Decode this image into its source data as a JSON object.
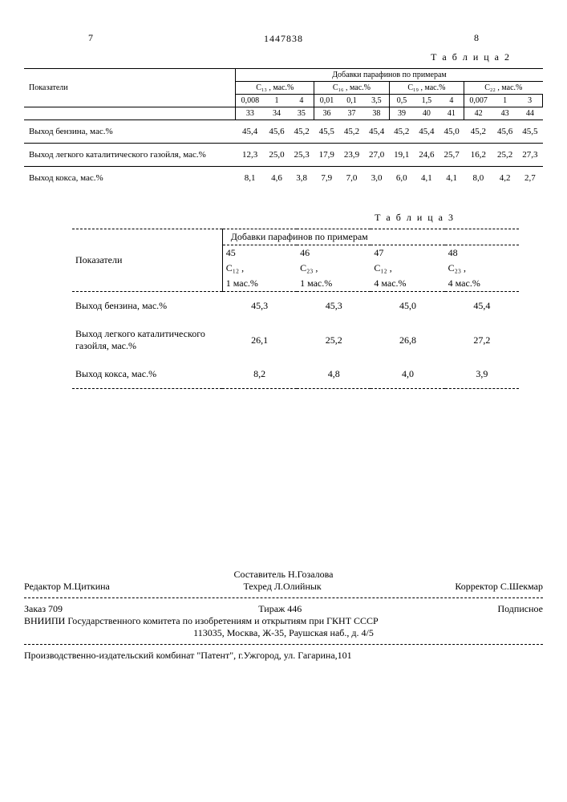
{
  "pageLeft": "7",
  "patentNumber": "1447838",
  "pageRight": "8",
  "table2": {
    "caption": "Т а б л и ц а 2",
    "cornerHeader": "Показатели",
    "spanHeader": "Добавки парафинов по примерам",
    "groups": [
      {
        "label": "C₁₃ , мас.%",
        "conc": [
          "0,008",
          "1",
          "4"
        ],
        "ex": [
          "33",
          "34",
          "35"
        ]
      },
      {
        "label": "C₁₆ , мас.%",
        "conc": [
          "0,01",
          "0,1",
          "3,5"
        ],
        "ex": [
          "36",
          "37",
          "38"
        ]
      },
      {
        "label": "C₁₉ , мас.%",
        "conc": [
          "0,5",
          "1,5",
          "4"
        ],
        "ex": [
          "39",
          "40",
          "41"
        ]
      },
      {
        "label": "C₂₂ , мас.%",
        "conc": [
          "0,007",
          "1",
          "3"
        ],
        "ex": [
          "42",
          "43",
          "44"
        ]
      }
    ],
    "rows": [
      {
        "label": "Выход бензина, мас.%",
        "vals": [
          "45,4",
          "45,6",
          "45,2",
          "45,5",
          "45,2",
          "45,4",
          "45,2",
          "45,4",
          "45,0",
          "45,2",
          "45,6",
          "45,5"
        ]
      },
      {
        "label": "Выход легкого каталитического газойля, мас.%",
        "vals": [
          "12,3",
          "25,0",
          "25,3",
          "17,9",
          "23,9",
          "27,0",
          "19,1",
          "24,6",
          "25,7",
          "16,2",
          "25,2",
          "27,3"
        ]
      },
      {
        "label": "Выход кокса, мас.%",
        "vals": [
          "8,1",
          "4,6",
          "3,8",
          "7,9",
          "7,0",
          "3,0",
          "6,0",
          "4,1",
          "4,1",
          "8,0",
          "4,2",
          "2,7"
        ]
      }
    ]
  },
  "table3": {
    "caption": "Т а б л и ц а 3",
    "cornerHeader": "Показатели",
    "spanHeader": "Добавки парафинов по примерам",
    "cols": [
      {
        "ex": "45",
        "comp": "C₁₂ ,",
        "amt": "1 мас.%"
      },
      {
        "ex": "46",
        "comp": "C₂₃ ,",
        "amt": "1 мас.%"
      },
      {
        "ex": "47",
        "comp": "C₁₂ ,",
        "amt": "4 мас.%"
      },
      {
        "ex": "48",
        "comp": "C₂₃ ,",
        "amt": "4 мас.%"
      }
    ],
    "rows": [
      {
        "label": "Выход бензина, мас.%",
        "vals": [
          "45,3",
          "45,3",
          "45,0",
          "45,4"
        ]
      },
      {
        "label": "Выход легкого каталитического газойля, мас.%",
        "vals": [
          "26,1",
          "25,2",
          "26,8",
          "27,2"
        ]
      },
      {
        "label": "Выход кокса, мас.%",
        "vals": [
          "8,2",
          "4,8",
          "4,0",
          "3,9"
        ]
      }
    ]
  },
  "footer": {
    "compiler": "Составитель Н.Гозалова",
    "editor": "Редактор М.Циткина",
    "tech": "Техред Л.Олийнык",
    "corrector": "Корректор С.Шекмар",
    "orderLine": {
      "order": "Заказ 709",
      "tirage": "Тираж 446",
      "sign": "Подписное"
    },
    "org": "ВНИИПИ Государственного комитета по изобретениям и открытиям при ГКНТ СССР",
    "addr": "113035, Москва, Ж-35, Раушская наб., д. 4/5",
    "printer": "Производственно-издательский комбинат \"Патент\", г.Ужгород, ул. Гагарина,101"
  }
}
